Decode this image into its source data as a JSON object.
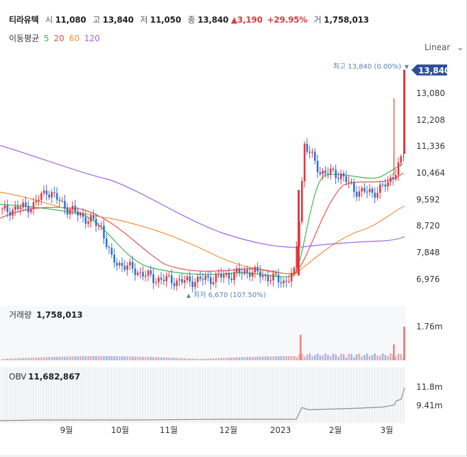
{
  "header": {
    "name": "티라유텍",
    "open_label": "시",
    "open": "11,080",
    "high_label": "고",
    "high": "13,840",
    "low_label": "저",
    "low": "11,050",
    "close_label": "종",
    "close": "13,840",
    "change": "3,190",
    "change_pct": "+29.95%",
    "volume_label": "거",
    "volume": "1,758,013"
  },
  "ma_legend": {
    "label": "이동평균",
    "periods": [
      "5",
      "20",
      "60",
      "120"
    ],
    "colors": [
      "#3bb54a",
      "#e35050",
      "#f0923a",
      "#a063e8"
    ]
  },
  "scale_button": "Linear",
  "chart_data": {
    "type": "candlestick",
    "price_axis": {
      "ticks": [
        "13,840",
        "13,080",
        "12,208",
        "11,336",
        "10,464",
        "9,592",
        "8,720",
        "7,848",
        "6,976"
      ],
      "ylim": [
        6400,
        14000
      ]
    },
    "x_ticks": [
      "9월",
      "10월",
      "11월",
      "12월",
      "2023",
      "2월",
      "3월"
    ],
    "max_label": "최고 13,840 (0.00%)",
    "min_label": "최저 6,670 (107.50%)",
    "last_price_tag": "13,840",
    "up_color": "#e0383e",
    "down_color": "#2f6fd6",
    "volume_panel": {
      "label": "거래량",
      "value": "1,758,013",
      "ticks": [
        "1.76m"
      ]
    },
    "obv_panel": {
      "label": "OBV",
      "value": "11,682,867",
      "ticks": [
        "11.8m",
        "9.41m"
      ]
    }
  }
}
